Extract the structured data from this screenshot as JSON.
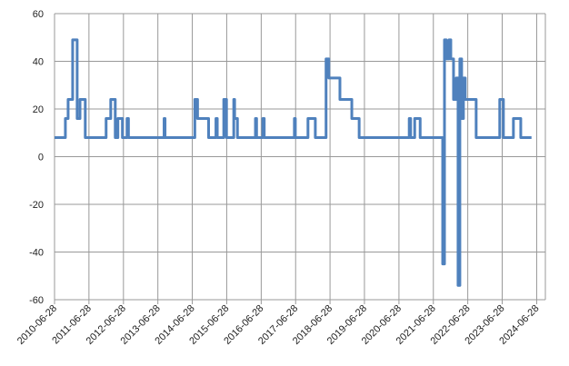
{
  "chart_data": {
    "type": "line",
    "x": [
      "2010-06-28",
      "2010-10-21",
      "2010-10-21",
      "2010-11-19",
      "2010-11-19",
      "2011-01-06",
      "2011-01-06",
      "2011-02-23",
      "2011-02-23",
      "2011-03-25",
      "2011-03-25",
      "2011-05-20",
      "2011-05-20",
      "2011-12-27",
      "2011-12-27",
      "2012-02-14",
      "2012-02-14",
      "2012-04-02",
      "2012-04-02",
      "2012-04-30",
      "2012-04-30",
      "2012-06-17",
      "2012-06-17",
      "2012-08-05",
      "2012-08-05",
      "2012-08-20",
      "2012-08-20",
      "2013-09-02",
      "2013-09-02",
      "2013-09-12",
      "2013-09-12",
      "2014-07-25",
      "2014-07-25",
      "2014-08-23",
      "2014-08-23",
      "2014-12-18",
      "2014-12-18",
      "2015-03-06",
      "2015-03-06",
      "2015-03-20",
      "2015-03-20",
      "2015-05-28",
      "2015-05-28",
      "2015-06-26",
      "2015-06-26",
      "2015-09-11",
      "2015-09-11",
      "2015-09-20",
      "2015-09-20",
      "2015-10-20",
      "2015-10-20",
      "2016-04-28",
      "2016-04-28",
      "2016-05-10",
      "2016-05-10",
      "2016-07-15",
      "2016-07-15",
      "2016-07-30",
      "2016-07-30",
      "2017-06-15",
      "2017-06-15",
      "2017-06-25",
      "2017-06-25",
      "2017-11-06",
      "2017-11-06",
      "2018-01-23",
      "2018-01-23",
      "2018-05-17",
      "2018-05-17",
      "2018-06-15",
      "2018-06-15",
      "2018-10-11",
      "2018-10-11",
      "2019-02-14",
      "2019-02-14",
      "2019-05-03",
      "2019-05-03",
      "2020-10-15",
      "2020-10-15",
      "2020-10-30",
      "2020-10-30",
      "2020-12-12",
      "2020-12-12",
      "2021-02-08",
      "2021-02-08",
      "2021-10-05",
      "2021-10-05",
      "2021-10-24",
      "2021-10-24",
      "2021-11-12",
      "2021-11-12",
      "2021-12-11",
      "2021-12-11",
      "2021-12-30",
      "2021-12-30",
      "2022-01-28",
      "2022-01-28",
      "2022-02-26",
      "2022-02-26",
      "2022-03-17",
      "2022-03-17",
      "2022-04-05",
      "2022-04-05",
      "2022-04-24",
      "2022-04-24",
      "2022-05-13",
      "2022-05-13",
      "2022-06-01",
      "2022-06-01",
      "2022-09-25",
      "2022-09-25",
      "2023-06-02",
      "2023-06-02",
      "2023-07-11",
      "2023-07-11",
      "2023-10-25",
      "2023-10-25",
      "2024-01-11",
      "2024-01-11",
      "2024-05-04"
    ],
    "values": [
      8,
      8,
      16,
      16,
      24,
      24,
      49,
      49,
      16,
      16,
      24,
      24,
      8,
      8,
      16,
      16,
      24,
      24,
      8,
      8,
      16,
      16,
      8,
      8,
      16,
      16,
      8,
      8,
      16,
      16,
      8,
      8,
      24,
      24,
      16,
      16,
      8,
      8,
      16,
      16,
      8,
      8,
      24,
      24,
      8,
      8,
      24,
      24,
      16,
      16,
      8,
      8,
      16,
      16,
      8,
      8,
      16,
      16,
      8,
      8,
      16,
      16,
      8,
      8,
      16,
      16,
      8,
      8,
      41,
      41,
      33,
      33,
      24,
      24,
      16,
      16,
      8,
      8,
      16,
      16,
      8,
      8,
      16,
      16,
      8,
      8,
      -45,
      -45,
      49,
      49,
      41,
      41,
      49,
      49,
      41,
      41,
      24,
      24,
      33,
      33,
      -54,
      -54,
      41,
      41,
      16,
      16,
      33,
      33,
      24,
      24,
      8,
      8,
      24,
      24,
      8,
      8,
      16,
      16,
      8,
      8
    ],
    "color": "#4f81bd",
    "xlim": [
      "2010-06-28",
      "2024-09-28"
    ],
    "xticks": [
      "2010-06-28",
      "2011-06-28",
      "2012-06-28",
      "2013-06-28",
      "2014-06-28",
      "2015-06-28",
      "2016-06-28",
      "2017-06-28",
      "2018-06-28",
      "2019-06-28",
      "2020-06-28",
      "2021-06-28",
      "2022-06-28",
      "2023-06-28",
      "2024-06-28"
    ],
    "ylim": [
      -60,
      60
    ],
    "yticks": [
      -60,
      -40,
      -20,
      0,
      20,
      40,
      60
    ],
    "grid": true
  }
}
